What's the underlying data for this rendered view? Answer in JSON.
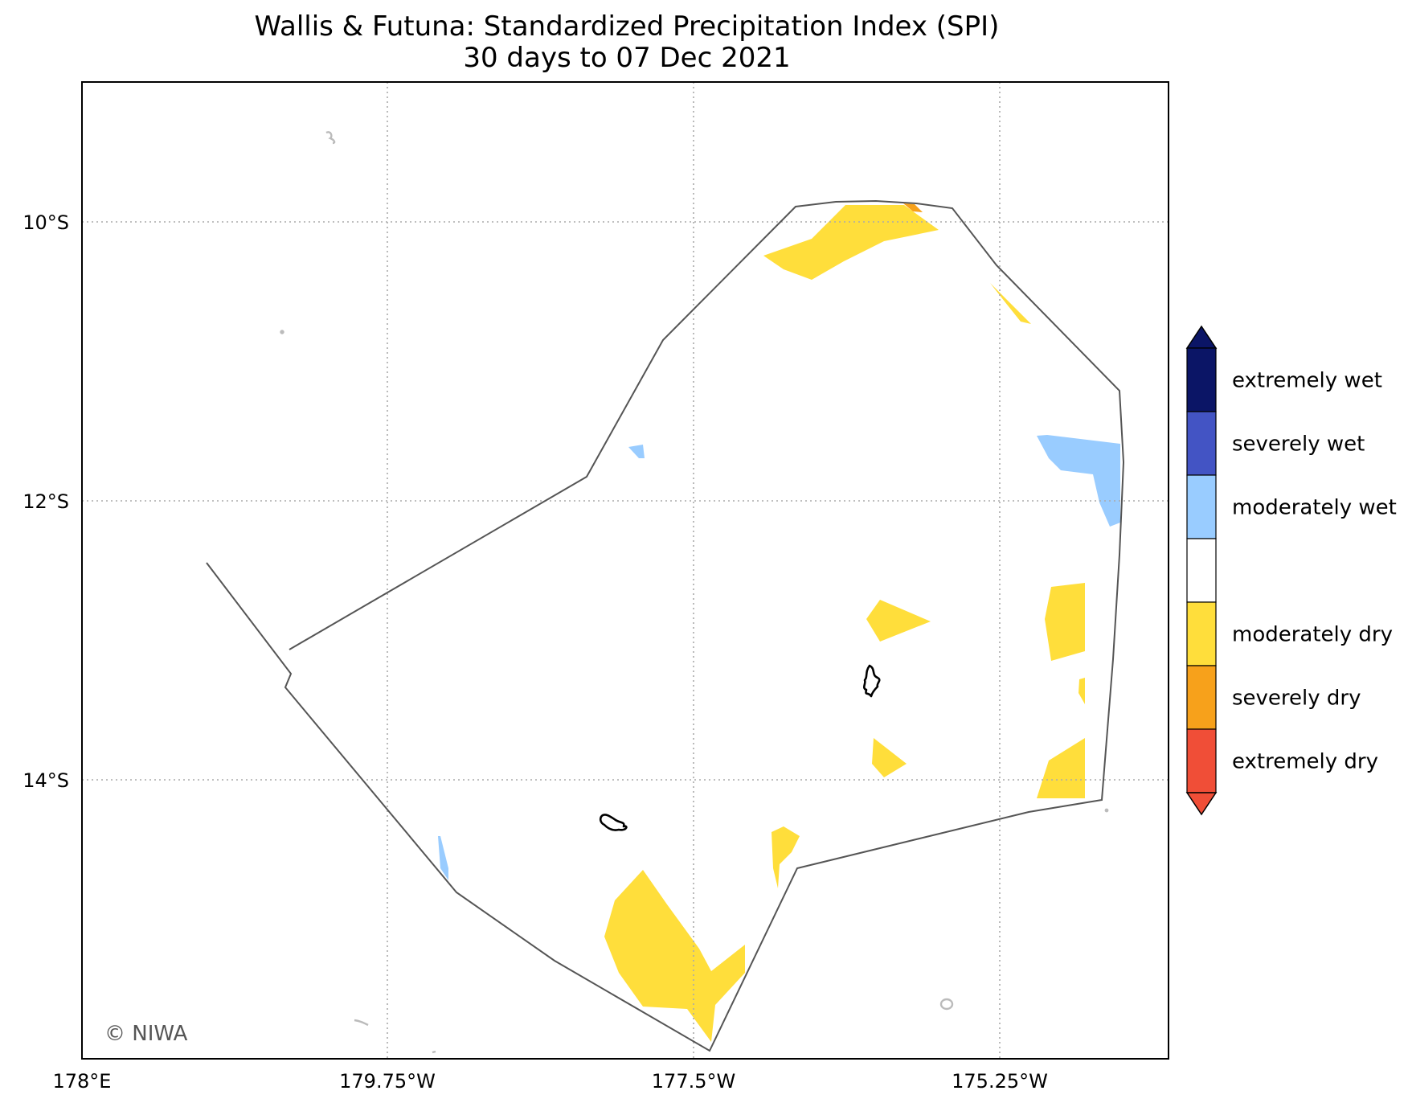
{
  "map": {
    "title": "Wallis & Futuna: Standardized Precipitation Index (SPI)",
    "subtitle": "30 days to 07 Dec 2021",
    "credit": "© NIWA",
    "x_ticks": [
      "178°E",
      "179.75°W",
      "177.5°W",
      "175.25°W"
    ],
    "y_ticks": [
      "10°S",
      "12°S",
      "14°S"
    ],
    "grid": "dotted",
    "legend": {
      "position": "right",
      "categories": [
        {
          "label": "extremely wet",
          "color": "#0b1566"
        },
        {
          "label": "severely wet",
          "color": "#4354c4"
        },
        {
          "label": "moderately wet",
          "color": "#99ccff"
        },
        {
          "label": "",
          "color": "#ffffff"
        },
        {
          "label": "moderately dry",
          "color": "#ffde3b"
        },
        {
          "label": "severely dry",
          "color": "#f7a11b"
        },
        {
          "label": "extremely dry",
          "color": "#f04e37"
        }
      ]
    }
  }
}
